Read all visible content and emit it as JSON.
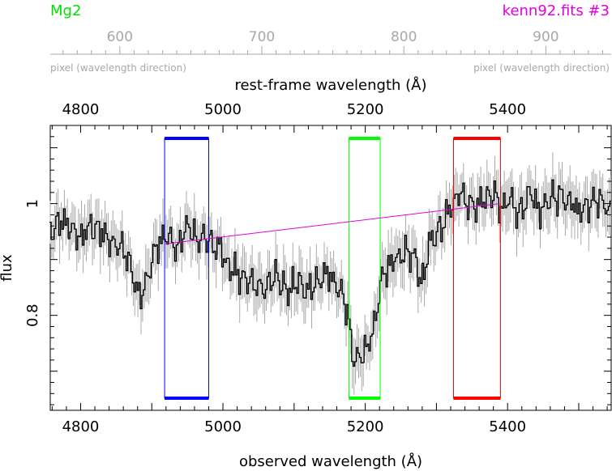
{
  "header": {
    "index_name": "Mg2",
    "file_label": "kenn92.fits #3"
  },
  "pixel_axis": {
    "ticks": [
      600,
      700,
      800,
      900
    ],
    "label_left": "pixel (wavelength direction)",
    "label_right": "pixel (wavelength direction)",
    "range": [
      551,
      946
    ]
  },
  "rest_axis": {
    "title": "rest-frame wavelength (Å)",
    "ticks": [
      4800,
      5000,
      5200,
      5400
    ],
    "range": [
      4757.3,
      5545.6
    ]
  },
  "x_axis": {
    "title": "observed wavelength (Å)",
    "ticks": [
      4800,
      5000,
      5200,
      5400
    ]
  },
  "y_axis": {
    "title": "flux",
    "ticks": [
      0.8,
      1
    ]
  },
  "colors": {
    "index_name": "#00e000",
    "file_label": "#e000e0",
    "secondary_axis": "#a8a8a8",
    "spectrum": "#000000",
    "error_bars": "#a8a8a8",
    "blue_band": "#0000ff",
    "central_band": "#00ff00",
    "red_band": "#ff0000",
    "continuum": "#e000e0"
  },
  "chart_data": {
    "type": "line",
    "xlim": [
      4757.3,
      5545.6
    ],
    "ylim": [
      0.63,
      1.14
    ],
    "series": [],
    "bands": [
      {
        "band": "blue continuum",
        "x_range": [
          4918,
          4980
        ]
      },
      {
        "band": "central",
        "x_range": [
          5177,
          5221
        ]
      },
      {
        "band": "red continuum",
        "x_range": [
          5324,
          5390
        ]
      }
    ],
    "continuum_line": {
      "x": [
        4919,
        5388
      ],
      "y": [
        0.928,
        1.0
      ]
    },
    "spectrum_control_points": {
      "x": [
        4757,
        4770,
        4785,
        4800,
        4815,
        4830,
        4845,
        4860,
        4875,
        4885,
        4895,
        4905,
        4915,
        4925,
        4935,
        4945,
        4955,
        4965,
        4975,
        4985,
        5000,
        5015,
        5030,
        5045,
        5060,
        5075,
        5090,
        5105,
        5120,
        5135,
        5150,
        5160,
        5170,
        5178,
        5185,
        5192,
        5200,
        5208,
        5215,
        5222,
        5230,
        5240,
        5250,
        5260,
        5270,
        5280,
        5290,
        5300,
        5310,
        5320,
        5330,
        5340,
        5350,
        5360,
        5370,
        5380,
        5390,
        5400,
        5415,
        5430,
        5445,
        5460,
        5475,
        5490,
        5505,
        5520,
        5535,
        5545
      ],
      "y": [
        0.95,
        0.97,
        0.96,
        0.94,
        0.96,
        0.95,
        0.93,
        0.92,
        0.87,
        0.83,
        0.87,
        0.92,
        0.94,
        0.93,
        0.92,
        0.95,
        0.96,
        0.93,
        0.94,
        0.93,
        0.91,
        0.88,
        0.87,
        0.86,
        0.85,
        0.87,
        0.85,
        0.86,
        0.84,
        0.86,
        0.87,
        0.85,
        0.83,
        0.78,
        0.71,
        0.73,
        0.74,
        0.76,
        0.8,
        0.86,
        0.88,
        0.9,
        0.91,
        0.92,
        0.9,
        0.86,
        0.93,
        0.95,
        0.96,
        0.99,
        1.02,
        1.01,
        0.99,
        1.0,
        1.01,
        1.02,
        0.99,
        1.01,
        0.98,
        1.02,
        0.99,
        1.01,
        1.02,
        1.0,
        0.98,
        1.01,
        1.0,
        0.99
      ]
    },
    "error_bar_amplitude": 0.04
  }
}
